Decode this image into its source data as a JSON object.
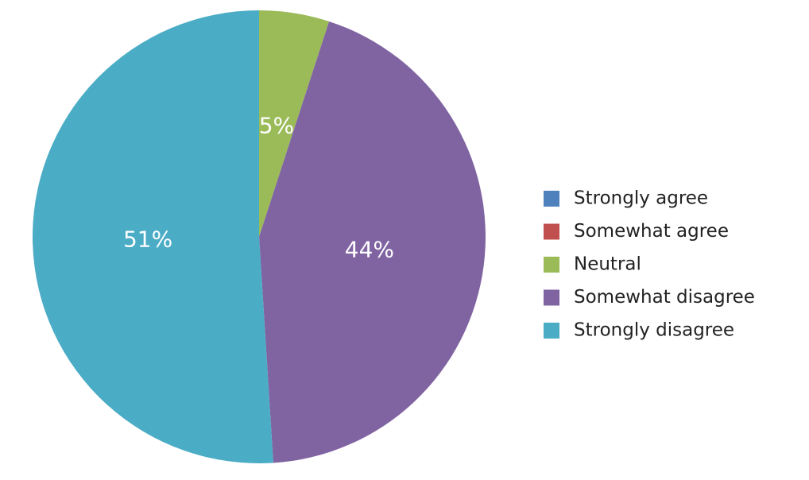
{
  "chart_data": {
    "type": "pie",
    "categories": [
      "Strongly agree",
      "Somewhat agree",
      "Neutral",
      "Somewhat disagree",
      "Strongly disagree"
    ],
    "values": [
      0,
      0,
      5,
      44,
      51
    ],
    "value_labels": [
      null,
      null,
      "5%",
      "44%",
      "51%"
    ],
    "colors": [
      "#4f81bd",
      "#c0504d",
      "#9bbb59",
      "#8064a2",
      "#4bacc6"
    ],
    "legend": "right"
  }
}
